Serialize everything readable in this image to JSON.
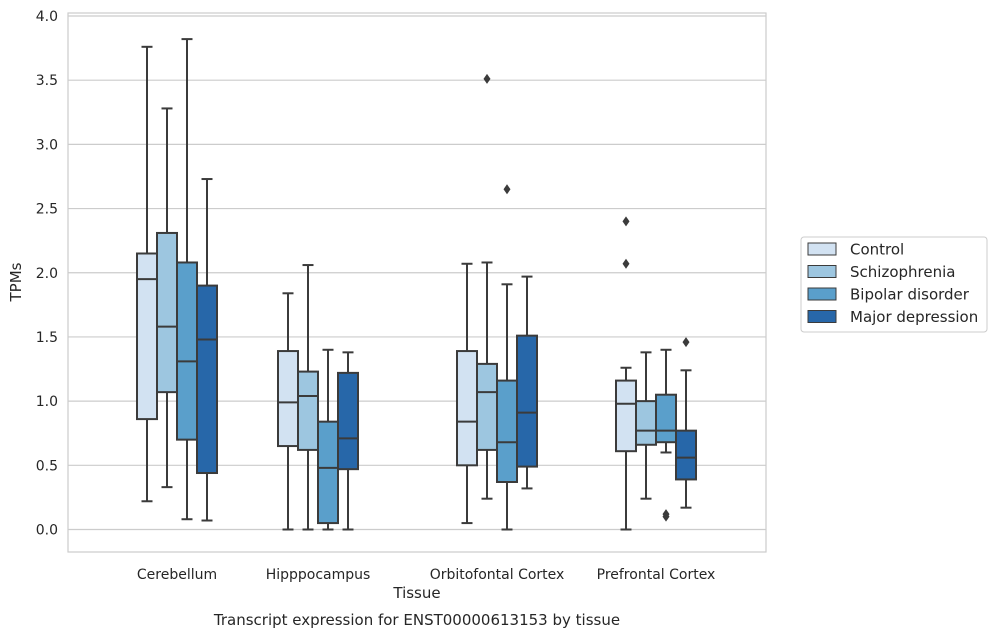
{
  "chart_data": {
    "type": "boxplot",
    "xlabel": "Tissue",
    "ylabel": "TPMs",
    "caption": "Transcript expression for ENST00000613153 by tissue",
    "ylim": [
      -0.18,
      4.02
    ],
    "yticks": [
      "0.0",
      "0.5",
      "1.0",
      "1.5",
      "2.0",
      "2.5",
      "3.0",
      "3.5",
      "4.0"
    ],
    "grid": "horizontal",
    "legend_position": "right",
    "categories": [
      "Cerebellum",
      "Hipppocampus",
      "Orbitofontal Cortex",
      "Prefrontal Cortex"
    ],
    "series": [
      {
        "name": "Control",
        "color": "#d2e2f2",
        "boxes": [
          {
            "whislo": 0.22,
            "q1": 0.86,
            "med": 1.95,
            "q3": 2.15,
            "whishi": 3.76,
            "fliers": []
          },
          {
            "whislo": 0.0,
            "q1": 0.65,
            "med": 0.99,
            "q3": 1.39,
            "whishi": 1.84,
            "fliers": []
          },
          {
            "whislo": 0.05,
            "q1": 0.5,
            "med": 0.84,
            "q3": 1.39,
            "whishi": 2.07,
            "fliers": []
          },
          {
            "whislo": 0.0,
            "q1": 0.61,
            "med": 0.98,
            "q3": 1.16,
            "whishi": 1.26,
            "fliers": [
              2.07,
              2.4
            ]
          }
        ]
      },
      {
        "name": "Schizophrenia",
        "color": "#9dc6e0",
        "boxes": [
          {
            "whislo": 0.33,
            "q1": 1.07,
            "med": 1.58,
            "q3": 2.31,
            "whishi": 3.28,
            "fliers": []
          },
          {
            "whislo": 0.0,
            "q1": 0.62,
            "med": 1.04,
            "q3": 1.23,
            "whishi": 2.06,
            "fliers": []
          },
          {
            "whislo": 0.24,
            "q1": 0.62,
            "med": 1.07,
            "q3": 1.29,
            "whishi": 2.08,
            "fliers": [
              3.51
            ]
          },
          {
            "whislo": 0.24,
            "q1": 0.66,
            "med": 0.77,
            "q3": 1.0,
            "whishi": 1.38,
            "fliers": []
          }
        ]
      },
      {
        "name": "Bipolar disorder",
        "color": "#5a9fcb",
        "boxes": [
          {
            "whislo": 0.08,
            "q1": 0.7,
            "med": 1.31,
            "q3": 2.08,
            "whishi": 3.82,
            "fliers": []
          },
          {
            "whislo": 0.0,
            "q1": 0.05,
            "med": 0.48,
            "q3": 0.84,
            "whishi": 1.4,
            "fliers": []
          },
          {
            "whislo": 0.0,
            "q1": 0.37,
            "med": 0.68,
            "q3": 1.16,
            "whishi": 1.91,
            "fliers": [
              2.65
            ]
          },
          {
            "whislo": 0.6,
            "q1": 0.68,
            "med": 0.77,
            "q3": 1.05,
            "whishi": 1.4,
            "fliers": [
              0.1,
              0.12
            ]
          }
        ]
      },
      {
        "name": "Major depression",
        "color": "#2767a9",
        "boxes": [
          {
            "whislo": 0.07,
            "q1": 0.44,
            "med": 1.48,
            "q3": 1.9,
            "whishi": 2.73,
            "fliers": []
          },
          {
            "whislo": 0.0,
            "q1": 0.47,
            "med": 0.71,
            "q3": 1.22,
            "whishi": 1.38,
            "fliers": []
          },
          {
            "whislo": 0.32,
            "q1": 0.49,
            "med": 0.91,
            "q3": 1.51,
            "whishi": 1.97,
            "fliers": []
          },
          {
            "whislo": 0.17,
            "q1": 0.39,
            "med": 0.56,
            "q3": 0.77,
            "whishi": 1.24,
            "fliers": [
              1.46
            ]
          }
        ]
      }
    ]
  }
}
